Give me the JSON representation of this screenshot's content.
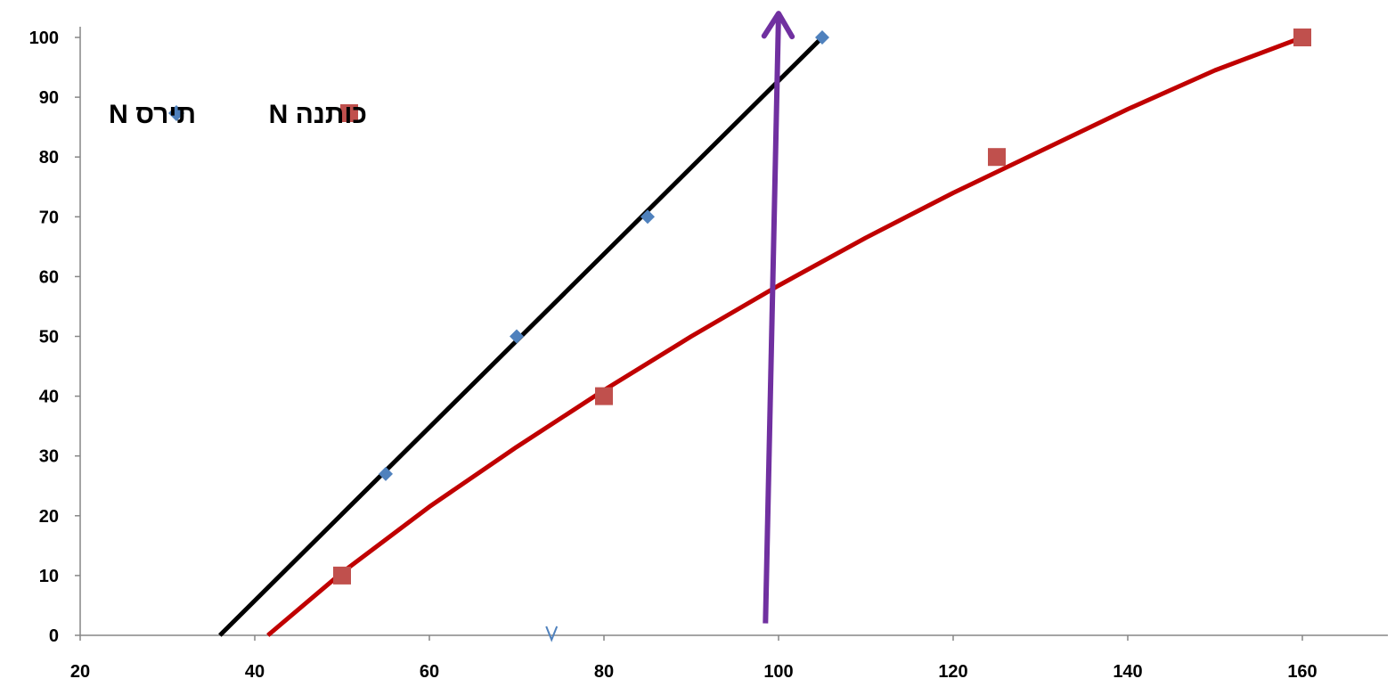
{
  "chart_data": {
    "type": "scatter",
    "title": "",
    "xlabel": "",
    "ylabel": "",
    "xlim": [
      20,
      170
    ],
    "ylim": [
      0,
      100
    ],
    "x_ticks": [
      20,
      40,
      60,
      80,
      100,
      120,
      140,
      160
    ],
    "y_ticks": [
      0,
      10,
      20,
      30,
      40,
      50,
      60,
      70,
      80,
      90,
      100
    ],
    "grid": false,
    "legend_position": "top-left",
    "series": [
      {
        "name": "N תירס",
        "marker": "diamond",
        "color": "#4f81bd",
        "x": [
          55,
          70,
          85,
          105
        ],
        "y": [
          27,
          50,
          70,
          100
        ],
        "trendline": {
          "type": "linear",
          "color": "#000000",
          "points": [
            [
              36,
              0
            ],
            [
              105,
              100
            ]
          ]
        }
      },
      {
        "name": "N  כותנה",
        "marker": "square",
        "color": "#c0504d",
        "x": [
          50,
          80,
          125,
          160
        ],
        "y": [
          10,
          40,
          80,
          100
        ],
        "trendline": {
          "type": "polynomial",
          "color": "#c00000",
          "points": [
            [
              41.5,
              0
            ],
            [
              50,
              10.5
            ],
            [
              60,
              21.5
            ],
            [
              70,
              31.5
            ],
            [
              80,
              41
            ],
            [
              90,
              50
            ],
            [
              100,
              58.5
            ],
            [
              110,
              66.5
            ],
            [
              120,
              74
            ],
            [
              130,
              81
            ],
            [
              140,
              88
            ],
            [
              150,
              94.5
            ],
            [
              160,
              100
            ]
          ]
        }
      }
    ],
    "annotations": [
      {
        "type": "arrow",
        "color": "#7030a0",
        "from": [
          98.5,
          2
        ],
        "to": [
          100,
          104
        ]
      },
      {
        "type": "small-arrow",
        "color": "#4f81bd",
        "at": [
          74,
          0
        ]
      }
    ]
  }
}
